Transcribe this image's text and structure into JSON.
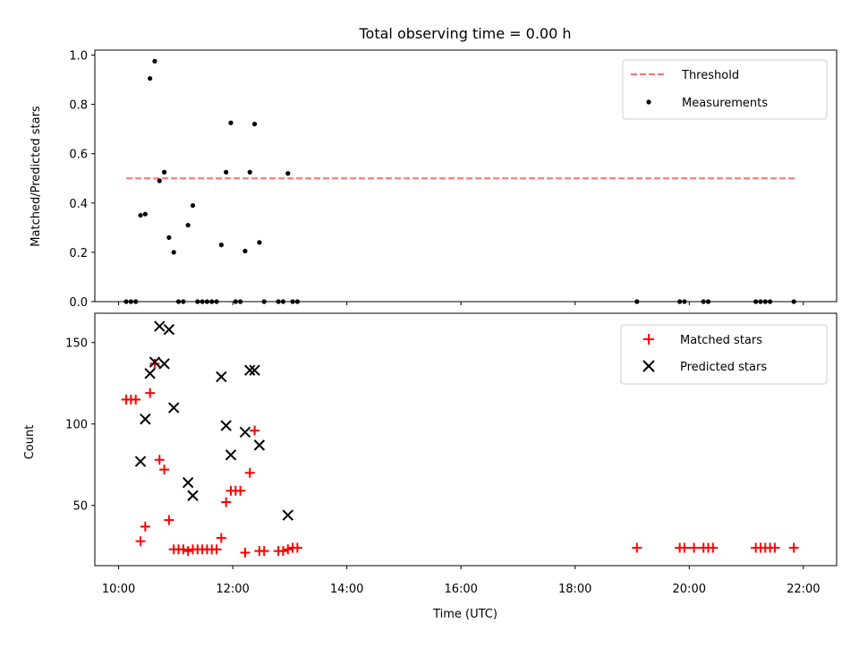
{
  "chart_data": [
    {
      "type": "scatter",
      "title": "Total observing time = 0.00 h",
      "xlabel": "",
      "ylabel": "Matched/Predicted stars",
      "x_unit": "hours UTC",
      "xlim": [
        "09:35",
        "22:35"
      ],
      "ylim": [
        0.0,
        1.02
      ],
      "yticks": [
        "0.0",
        "0.2",
        "0.4",
        "0.6",
        "0.8",
        "1.0"
      ],
      "legend": {
        "position": "top-right",
        "entries": [
          "Threshold",
          "Measurements"
        ]
      },
      "threshold": {
        "name": "Threshold",
        "y": 0.5,
        "x_start": "10:08",
        "x_end": "21:53",
        "color": "#ff7070",
        "style": "dashed"
      },
      "series": [
        {
          "name": "Measurements",
          "color": "#000000",
          "marker": "dot",
          "points": [
            [
              "10:08",
              0.0
            ],
            [
              "10:13",
              0.0
            ],
            [
              "10:18",
              0.0
            ],
            [
              "10:23",
              0.35
            ],
            [
              "10:28",
              0.355
            ],
            [
              "10:33",
              0.905
            ],
            [
              "10:38",
              0.975
            ],
            [
              "10:43",
              0.49
            ],
            [
              "10:48",
              0.525
            ],
            [
              "10:53",
              0.26
            ],
            [
              "10:58",
              0.2
            ],
            [
              "11:03",
              0.0
            ],
            [
              "11:08",
              0.0
            ],
            [
              "11:13",
              0.31
            ],
            [
              "11:18",
              0.39
            ],
            [
              "11:23",
              0.0
            ],
            [
              "11:28",
              0.0
            ],
            [
              "11:33",
              0.0
            ],
            [
              "11:38",
              0.0
            ],
            [
              "11:43",
              0.0
            ],
            [
              "11:48",
              0.23
            ],
            [
              "11:53",
              0.525
            ],
            [
              "11:58",
              0.725
            ],
            [
              "12:03",
              0.0
            ],
            [
              "12:08",
              0.0
            ],
            [
              "12:13",
              0.205
            ],
            [
              "12:18",
              0.525
            ],
            [
              "12:23",
              0.72
            ],
            [
              "12:28",
              0.24
            ],
            [
              "12:33",
              0.0
            ],
            [
              "12:48",
              0.0
            ],
            [
              "12:53",
              0.0
            ],
            [
              "12:58",
              0.52
            ],
            [
              "13:03",
              0.0
            ],
            [
              "13:08",
              0.0
            ],
            [
              "19:05",
              0.0
            ],
            [
              "19:50",
              0.0
            ],
            [
              "19:55",
              0.0
            ],
            [
              "20:15",
              0.0
            ],
            [
              "20:20",
              0.0
            ],
            [
              "21:10",
              0.0
            ],
            [
              "21:15",
              0.0
            ],
            [
              "21:20",
              0.0
            ],
            [
              "21:25",
              0.0
            ],
            [
              "21:50",
              0.0
            ]
          ]
        }
      ]
    },
    {
      "type": "scatter",
      "title": "",
      "xlabel": "Time (UTC)",
      "ylabel": "Count",
      "xlim": [
        "09:35",
        "22:35"
      ],
      "ylim": [
        13,
        168
      ],
      "xticks": [
        "10:00",
        "12:00",
        "14:00",
        "16:00",
        "18:00",
        "20:00",
        "22:00"
      ],
      "yticks": [
        "50",
        "100",
        "150"
      ],
      "legend": {
        "position": "top-right",
        "entries": [
          "Matched stars",
          "Predicted stars"
        ]
      },
      "series": [
        {
          "name": "Matched stars",
          "color": "#ff0000",
          "marker": "plus",
          "points": [
            [
              "10:08",
              115
            ],
            [
              "10:13",
              115
            ],
            [
              "10:18",
              115
            ],
            [
              "10:23",
              28
            ],
            [
              "10:28",
              37
            ],
            [
              "10:33",
              119
            ],
            [
              "10:38",
              137
            ],
            [
              "10:43",
              78
            ],
            [
              "10:48",
              72
            ],
            [
              "10:53",
              41
            ],
            [
              "10:58",
              23
            ],
            [
              "11:03",
              23
            ],
            [
              "11:08",
              23
            ],
            [
              "11:13",
              22
            ],
            [
              "11:18",
              23
            ],
            [
              "11:23",
              23
            ],
            [
              "11:28",
              23
            ],
            [
              "11:33",
              23
            ],
            [
              "11:38",
              23
            ],
            [
              "11:43",
              23
            ],
            [
              "11:48",
              30
            ],
            [
              "11:53",
              52
            ],
            [
              "11:58",
              59
            ],
            [
              "12:03",
              59
            ],
            [
              "12:08",
              59
            ],
            [
              "12:13",
              21
            ],
            [
              "12:18",
              70
            ],
            [
              "12:23",
              96
            ],
            [
              "12:28",
              22
            ],
            [
              "12:33",
              22
            ],
            [
              "12:48",
              22
            ],
            [
              "12:53",
              22
            ],
            [
              "12:58",
              23
            ],
            [
              "13:03",
              24
            ],
            [
              "13:08",
              24
            ],
            [
              "19:05",
              24
            ],
            [
              "19:50",
              24
            ],
            [
              "19:55",
              24
            ],
            [
              "20:05",
              24
            ],
            [
              "20:15",
              24
            ],
            [
              "20:20",
              24
            ],
            [
              "20:25",
              24
            ],
            [
              "21:10",
              24
            ],
            [
              "21:15",
              24
            ],
            [
              "21:20",
              24
            ],
            [
              "21:25",
              24
            ],
            [
              "21:30",
              24
            ],
            [
              "21:50",
              24
            ]
          ]
        },
        {
          "name": "Predicted stars",
          "color": "#000000",
          "marker": "x",
          "points": [
            [
              "10:23",
              77
            ],
            [
              "10:28",
              103
            ],
            [
              "10:33",
              131
            ],
            [
              "10:38",
              138
            ],
            [
              "10:43",
              160
            ],
            [
              "10:48",
              137
            ],
            [
              "10:53",
              158
            ],
            [
              "10:58",
              110
            ],
            [
              "11:13",
              64
            ],
            [
              "11:18",
              56
            ],
            [
              "11:48",
              129
            ],
            [
              "11:53",
              99
            ],
            [
              "11:58",
              81
            ],
            [
              "12:13",
              95
            ],
            [
              "12:18",
              133
            ],
            [
              "12:23",
              133
            ],
            [
              "12:28",
              87
            ],
            [
              "12:58",
              44
            ]
          ]
        }
      ]
    }
  ]
}
